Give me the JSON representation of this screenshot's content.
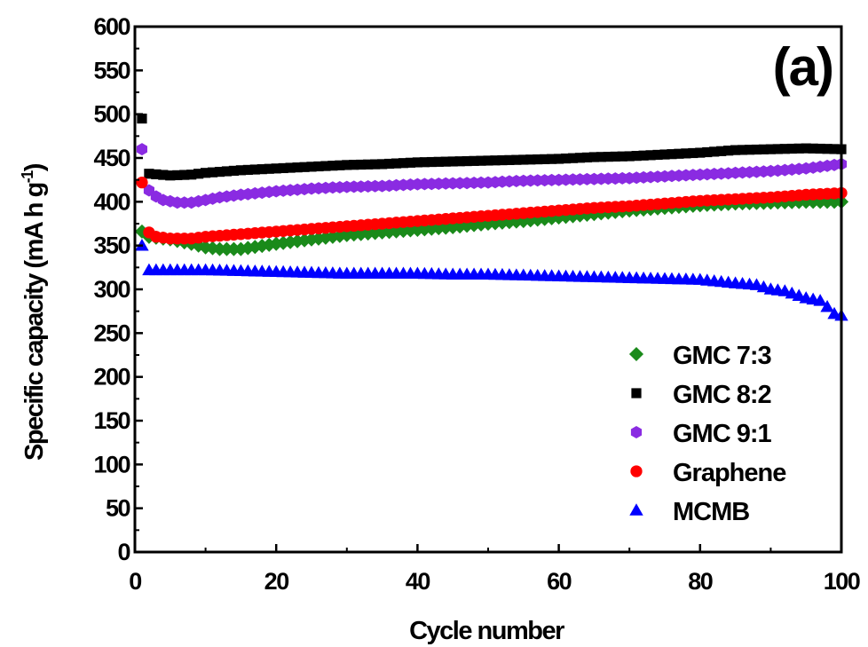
{
  "chart_data": {
    "type": "scatter",
    "panel_label": "(a)",
    "xlabel": "Cycle number",
    "ylabel": "Specific capacity (mA h g-1)",
    "ylabel_main": "Specific capacity (mA h g",
    "ylabel_sup": "-1",
    "ylabel_end": ")",
    "xlim": [
      0,
      100
    ],
    "ylim": [
      0,
      600
    ],
    "xticks": [
      0,
      20,
      40,
      60,
      80,
      100
    ],
    "yticks": [
      0,
      50,
      100,
      150,
      200,
      250,
      300,
      350,
      400,
      450,
      500,
      550,
      600
    ],
    "legend_position": "lower-right",
    "series": [
      {
        "name": "GMC 7:3",
        "color": "#1a8a1a",
        "marker": "diamond",
        "first": [
          1,
          366
        ],
        "x": [
          2,
          5,
          8,
          10,
          12,
          15,
          20,
          25,
          30,
          35,
          40,
          45,
          50,
          55,
          60,
          65,
          70,
          75,
          80,
          85,
          90,
          95,
          100
        ],
        "values": [
          360,
          357,
          352,
          348,
          346,
          346,
          352,
          357,
          362,
          365,
          368,
          371,
          375,
          378,
          382,
          386,
          390,
          393,
          396,
          398,
          399,
          400,
          400
        ]
      },
      {
        "name": "GMC 8:2",
        "color": "#000000",
        "marker": "square",
        "first": [
          1,
          495
        ],
        "x": [
          2,
          5,
          8,
          10,
          15,
          20,
          25,
          30,
          35,
          40,
          45,
          50,
          55,
          60,
          65,
          70,
          75,
          80,
          85,
          90,
          95,
          100
        ],
        "values": [
          432,
          430,
          431,
          433,
          436,
          438,
          440,
          442,
          443,
          445,
          446,
          447,
          448,
          449,
          451,
          452,
          454,
          456,
          459,
          460,
          461,
          460
        ]
      },
      {
        "name": "GMC 9:1",
        "color": "#8a2be2",
        "marker": "hexagon",
        "first": [
          1,
          460
        ],
        "x": [
          2,
          3,
          4,
          6,
          8,
          10,
          12,
          15,
          20,
          25,
          30,
          35,
          40,
          45,
          50,
          55,
          60,
          65,
          70,
          75,
          80,
          85,
          90,
          95,
          100
        ],
        "values": [
          413,
          406,
          402,
          399,
          399,
          402,
          405,
          408,
          412,
          415,
          417,
          418,
          420,
          421,
          422,
          424,
          425,
          426,
          427,
          429,
          431,
          433,
          435,
          438,
          443
        ]
      },
      {
        "name": "Graphene",
        "color": "#ff0000",
        "marker": "circle",
        "first": [
          1,
          422
        ],
        "x": [
          2,
          3,
          5,
          8,
          10,
          15,
          20,
          25,
          30,
          35,
          40,
          45,
          50,
          55,
          60,
          65,
          70,
          75,
          80,
          85,
          90,
          95,
          100
        ],
        "values": [
          365,
          360,
          358,
          358,
          360,
          363,
          366,
          369,
          372,
          375,
          378,
          381,
          384,
          387,
          390,
          393,
          395,
          398,
          401,
          403,
          405,
          408,
          410
        ]
      },
      {
        "name": "MCMB",
        "color": "#0000ff",
        "marker": "triangle",
        "first": [
          1,
          350
        ],
        "x": [
          2,
          5,
          10,
          15,
          20,
          25,
          30,
          35,
          40,
          45,
          50,
          55,
          60,
          65,
          70,
          75,
          80,
          85,
          88,
          90,
          92,
          95,
          97,
          98,
          99,
          100
        ],
        "values": [
          322,
          322,
          322,
          321,
          320,
          319,
          318,
          318,
          318,
          317,
          317,
          316,
          315,
          314,
          313,
          312,
          311,
          307,
          305,
          300,
          298,
          290,
          287,
          280,
          272,
          270
        ]
      }
    ]
  }
}
